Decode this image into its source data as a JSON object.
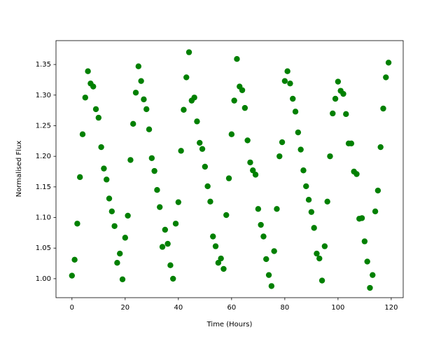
{
  "chart_data": {
    "type": "scatter",
    "x_label": "Time (Hours)",
    "y_label": "Normalised Flux",
    "color": "#008000",
    "x": [
      0,
      1,
      2,
      3,
      4,
      5,
      6,
      7,
      8,
      9,
      10,
      11,
      12,
      13,
      14,
      15,
      16,
      17,
      18,
      19,
      20,
      21,
      22,
      23,
      24,
      25,
      26,
      27,
      28,
      29,
      30,
      31,
      32,
      33,
      34,
      35,
      36,
      37,
      38,
      39,
      40,
      41,
      42,
      43,
      44,
      45,
      46,
      47,
      48,
      49,
      50,
      51,
      52,
      53,
      54,
      55,
      56,
      57,
      58,
      59,
      60,
      61,
      62,
      63,
      64,
      65,
      66,
      67,
      68,
      69,
      70,
      71,
      72,
      73,
      74,
      75,
      76,
      77,
      78,
      79,
      80,
      81,
      82,
      83,
      84,
      85,
      86,
      87,
      88,
      89,
      90,
      91,
      92,
      93,
      94,
      95,
      96,
      97,
      98,
      99,
      100,
      101,
      102,
      103,
      104,
      105,
      106,
      107,
      108,
      109,
      110,
      111,
      112,
      113,
      114,
      115,
      116,
      117,
      118,
      119
    ],
    "values": [
      1.005,
      1.031,
      1.09,
      1.166,
      1.236,
      1.296,
      1.339,
      1.319,
      1.314,
      1.277,
      1.263,
      1.215,
      1.18,
      1.162,
      1.131,
      1.11,
      1.086,
      1.026,
      1.041,
      0.999,
      1.067,
      1.103,
      1.194,
      1.253,
      1.304,
      1.347,
      1.323,
      1.293,
      1.277,
      1.244,
      1.197,
      1.176,
      1.145,
      1.117,
      1.052,
      1.08,
      1.057,
      1.022,
      1.0,
      1.09,
      1.125,
      1.209,
      1.276,
      1.329,
      1.37,
      1.291,
      1.296,
      1.257,
      1.222,
      1.212,
      1.183,
      1.151,
      1.126,
      1.069,
      1.053,
      1.026,
      1.033,
      1.016,
      1.104,
      1.164,
      1.236,
      1.291,
      1.359,
      1.314,
      1.308,
      1.279,
      1.226,
      1.19,
      1.177,
      1.17,
      1.114,
      1.088,
      1.069,
      1.032,
      1.006,
      0.988,
      1.045,
      1.114,
      1.2,
      1.223,
      1.323,
      1.339,
      1.319,
      1.294,
      1.273,
      1.239,
      1.211,
      1.177,
      1.151,
      1.129,
      1.109,
      1.083,
      1.041,
      1.033,
      0.997,
      1.053,
      1.126,
      1.2,
      1.27,
      1.294,
      1.322,
      1.307,
      1.302,
      1.269,
      1.221,
      1.221,
      1.175,
      1.171,
      1.098,
      1.099,
      1.061,
      1.028,
      0.985,
      1.006,
      1.11,
      1.144,
      1.215,
      1.278,
      1.329,
      1.353
    ],
    "xlim": [
      -6,
      124.5
    ],
    "ylim": [
      0.969,
      1.389
    ],
    "xticks": [
      0,
      20,
      40,
      60,
      80,
      100,
      120
    ],
    "yticks": [
      {
        "value": 1.0,
        "label": "1.00"
      },
      1.05,
      {
        "value": 1.1,
        "label": "1.10"
      },
      1.15,
      {
        "value": 1.2,
        "label": "1.20"
      },
      1.25,
      {
        "value": 1.3,
        "label": "1.30"
      },
      1.35
    ]
  }
}
